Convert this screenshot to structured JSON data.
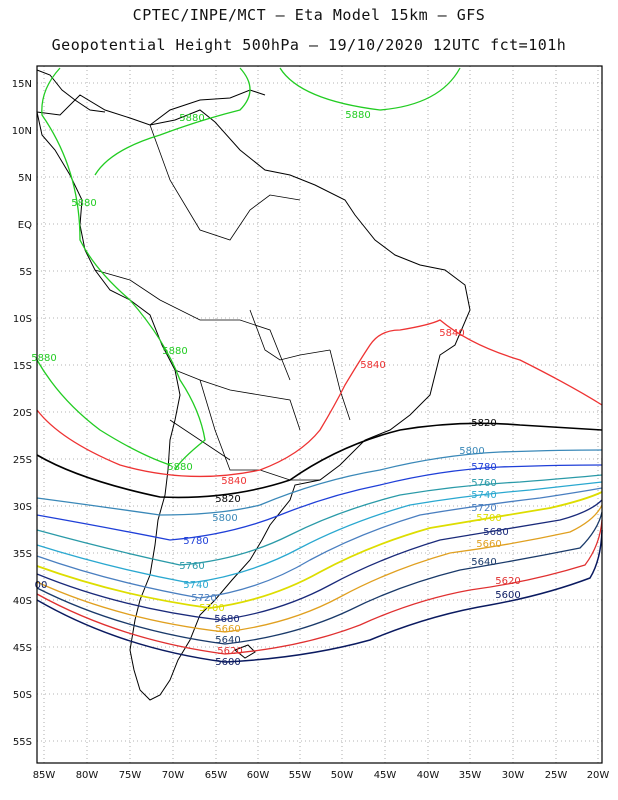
{
  "title_line1": "CPTEC/INPE/MCT  –  Eta Model 15km  –  GFS",
  "title_line2": "Geopotential Height 500hPa  –  19/10/2020 12UTC fct=101h",
  "lat_labels": [
    "15N",
    "10N",
    "5N",
    "EQ",
    "5S",
    "10S",
    "15S",
    "20S",
    "25S",
    "30S",
    "35S",
    "40S",
    "45S",
    "50S",
    "55S"
  ],
  "lon_labels": [
    "85W",
    "80W",
    "75W",
    "70W",
    "65W",
    "60W",
    "55W",
    "50W",
    "45W",
    "40W",
    "35W",
    "30W",
    "25W",
    "20W"
  ],
  "grid": true,
  "contour_labels": [
    {
      "text": "5880",
      "color": "#22cc22"
    },
    {
      "text": "5880",
      "color": "#22cc22"
    },
    {
      "text": "5880",
      "color": "#22cc22"
    },
    {
      "text": "5880",
      "color": "#22cc22"
    },
    {
      "text": "5880",
      "color": "#22cc22"
    },
    {
      "text": "5880",
      "color": "#22cc22"
    },
    {
      "text": "5840",
      "color": "#ee3333"
    },
    {
      "text": "5840",
      "color": "#ee3333"
    },
    {
      "text": "5840",
      "color": "#ee3333"
    },
    {
      "text": "5820",
      "color": "#000000"
    },
    {
      "text": "5820",
      "color": "#000000"
    },
    {
      "text": "5800",
      "color": "#3a88b8"
    },
    {
      "text": "5800",
      "color": "#3a88b8"
    },
    {
      "text": "5780",
      "color": "#1f3fd8"
    },
    {
      "text": "5780",
      "color": "#1f3fd8"
    },
    {
      "text": "5760",
      "color": "#2a9aa8"
    },
    {
      "text": "5760",
      "color": "#2a9aa8"
    },
    {
      "text": "5740",
      "color": "#2aa8d0"
    },
    {
      "text": "5740",
      "color": "#2aa8d0"
    },
    {
      "text": "5720",
      "color": "#4a7fc0"
    },
    {
      "text": "5720",
      "color": "#4a7fc0"
    },
    {
      "text": "5700",
      "color": "#dddd00"
    },
    {
      "text": "5700",
      "color": "#dddd00"
    },
    {
      "text": "5680",
      "color": "#1a2a7a"
    },
    {
      "text": "5680",
      "color": "#1a2a7a"
    },
    {
      "text": "5660",
      "color": "#e0a020"
    },
    {
      "text": "5660",
      "color": "#e0a020"
    },
    {
      "text": "5640",
      "color": "#1a3a6a"
    },
    {
      "text": "5640",
      "color": "#1a3a6a"
    },
    {
      "text": "5620",
      "color": "#e03030"
    },
    {
      "text": "5620",
      "color": "#e03030"
    },
    {
      "text": "5600",
      "color": "#0a1a60"
    },
    {
      "text": "5600",
      "color": "#0a1a60"
    },
    {
      "text": "00",
      "color": "#0a1a60"
    }
  ]
}
